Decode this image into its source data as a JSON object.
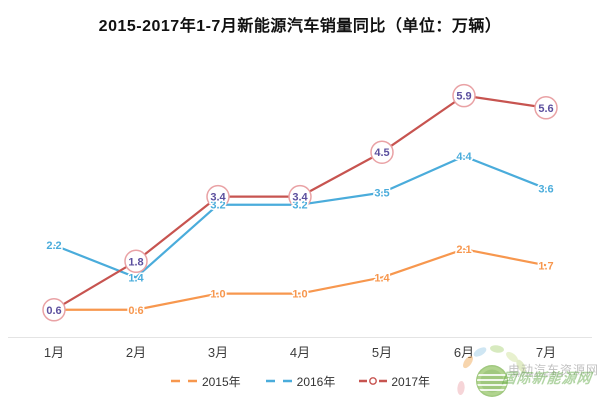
{
  "title": "2015-2017年1-7月新能源汽车销量同比（单位：万辆）",
  "chart_data": {
    "type": "line",
    "title": "2015-2017年1-7月新能源汽车销量同比（单位：万辆）",
    "categories": [
      "1月",
      "2月",
      "3月",
      "4月",
      "5月",
      "6月",
      "7月"
    ],
    "series": [
      {
        "name": "2015年",
        "color": "#F7974E",
        "values": [
          0.6,
          0.6,
          1.0,
          1.0,
          1.4,
          2.1,
          1.7
        ],
        "labels": [
          "",
          "0.6",
          "1.0",
          "1.0",
          "1.4",
          "2.1",
          "1.7"
        ],
        "marker": "none"
      },
      {
        "name": "2016年",
        "color": "#4AACDB",
        "values": [
          2.2,
          1.4,
          3.2,
          3.2,
          3.5,
          4.4,
          3.6
        ],
        "labels": [
          "2.2",
          "1.4",
          "3.2",
          "3.2",
          "3.5",
          "4.4",
          "3.6"
        ],
        "marker": "none"
      },
      {
        "name": "2017年",
        "color": "#C75450",
        "marker_ring": "#E9A2A5",
        "label_color": "#5B4F9E",
        "values": [
          0.6,
          1.8,
          3.4,
          3.4,
          4.5,
          5.9,
          5.6
        ],
        "labels": [
          "0.6",
          "1.8",
          "3.4",
          "3.4",
          "4.5",
          "5.9",
          "5.6"
        ],
        "marker": "circled-label"
      }
    ],
    "xlabel": "",
    "ylabel": "",
    "ylim": [
      0,
      6.5
    ],
    "grid": false,
    "y_axis_visible": false,
    "axis_line_color": "#E4E4E4",
    "legend_position": "bottom"
  },
  "legend": {
    "items": [
      {
        "label": "2015年"
      },
      {
        "label": "2016年"
      },
      {
        "label": "2017年"
      }
    ]
  },
  "watermark": {
    "line1": "电动汽车资源网",
    "url": "www.evpartner.com",
    "line2": "国际新能源网"
  }
}
